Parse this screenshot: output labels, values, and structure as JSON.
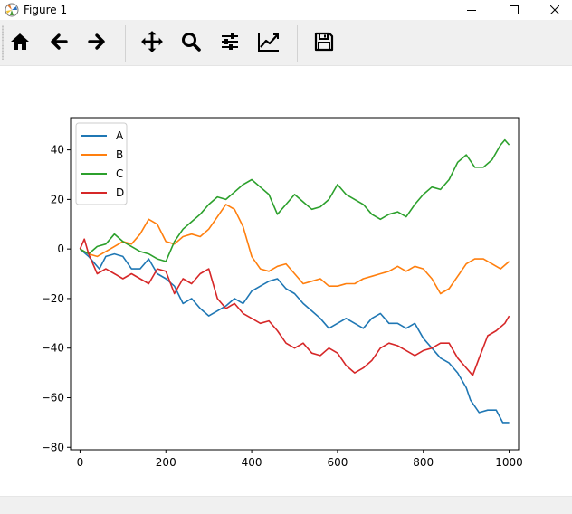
{
  "window": {
    "title": "Figure 1"
  },
  "toolbar": {
    "buttons": [
      {
        "icon": "home-icon"
      },
      {
        "icon": "back-arrow-icon"
      },
      {
        "icon": "forward-arrow-icon"
      },
      {
        "icon": "pan-move-icon"
      },
      {
        "icon": "zoom-icon"
      },
      {
        "icon": "subplots-config-icon"
      },
      {
        "icon": "edit-axes-icon"
      },
      {
        "icon": "save-icon"
      }
    ]
  },
  "chart_data": {
    "type": "line",
    "x_range": [
      0,
      1000
    ],
    "xlim": [
      -22,
      1022
    ],
    "ylim": [
      -81,
      53
    ],
    "x_ticks": [
      0,
      200,
      400,
      600,
      800,
      1000
    ],
    "y_ticks": [
      -80,
      -60,
      -40,
      -20,
      0,
      20,
      40
    ],
    "legend_position": "top-left",
    "grid": false,
    "series": [
      {
        "name": "A",
        "color": "#1f77b4",
        "points": [
          [
            0,
            0
          ],
          [
            20,
            -3
          ],
          [
            45,
            -8
          ],
          [
            60,
            -3
          ],
          [
            80,
            -2
          ],
          [
            100,
            -3
          ],
          [
            120,
            -8
          ],
          [
            140,
            -8
          ],
          [
            160,
            -4
          ],
          [
            180,
            -10
          ],
          [
            200,
            -12
          ],
          [
            220,
            -15
          ],
          [
            240,
            -22
          ],
          [
            260,
            -20
          ],
          [
            280,
            -24
          ],
          [
            300,
            -27
          ],
          [
            320,
            -25
          ],
          [
            340,
            -23
          ],
          [
            360,
            -20
          ],
          [
            380,
            -22
          ],
          [
            400,
            -17
          ],
          [
            420,
            -15
          ],
          [
            440,
            -13
          ],
          [
            460,
            -12
          ],
          [
            480,
            -16
          ],
          [
            500,
            -18
          ],
          [
            520,
            -22
          ],
          [
            540,
            -25
          ],
          [
            560,
            -28
          ],
          [
            580,
            -32
          ],
          [
            600,
            -30
          ],
          [
            620,
            -28
          ],
          [
            640,
            -30
          ],
          [
            660,
            -32
          ],
          [
            680,
            -28
          ],
          [
            700,
            -26
          ],
          [
            720,
            -30
          ],
          [
            740,
            -30
          ],
          [
            760,
            -32
          ],
          [
            780,
            -30
          ],
          [
            800,
            -36
          ],
          [
            820,
            -40
          ],
          [
            840,
            -44
          ],
          [
            860,
            -46
          ],
          [
            880,
            -50
          ],
          [
            900,
            -56
          ],
          [
            910,
            -61
          ],
          [
            930,
            -66
          ],
          [
            950,
            -65
          ],
          [
            970,
            -65
          ],
          [
            985,
            -70
          ],
          [
            1000,
            -70
          ]
        ]
      },
      {
        "name": "B",
        "color": "#ff7f0e",
        "points": [
          [
            0,
            0
          ],
          [
            20,
            -2
          ],
          [
            40,
            -3
          ],
          [
            60,
            -1
          ],
          [
            80,
            1
          ],
          [
            100,
            3
          ],
          [
            120,
            2
          ],
          [
            140,
            6
          ],
          [
            160,
            12
          ],
          [
            180,
            10
          ],
          [
            200,
            3
          ],
          [
            220,
            2
          ],
          [
            240,
            5
          ],
          [
            260,
            6
          ],
          [
            280,
            5
          ],
          [
            300,
            8
          ],
          [
            320,
            13
          ],
          [
            340,
            18
          ],
          [
            360,
            16
          ],
          [
            380,
            9
          ],
          [
            400,
            -3
          ],
          [
            420,
            -8
          ],
          [
            440,
            -9
          ],
          [
            460,
            -7
          ],
          [
            480,
            -6
          ],
          [
            500,
            -10
          ],
          [
            520,
            -14
          ],
          [
            540,
            -13
          ],
          [
            560,
            -12
          ],
          [
            580,
            -15
          ],
          [
            600,
            -15
          ],
          [
            620,
            -14
          ],
          [
            640,
            -14
          ],
          [
            660,
            -12
          ],
          [
            680,
            -11
          ],
          [
            700,
            -10
          ],
          [
            720,
            -9
          ],
          [
            740,
            -7
          ],
          [
            760,
            -9
          ],
          [
            780,
            -7
          ],
          [
            800,
            -8
          ],
          [
            820,
            -12
          ],
          [
            840,
            -18
          ],
          [
            860,
            -16
          ],
          [
            880,
            -11
          ],
          [
            900,
            -6
          ],
          [
            920,
            -4
          ],
          [
            940,
            -4
          ],
          [
            960,
            -6
          ],
          [
            980,
            -8
          ],
          [
            1000,
            -5
          ]
        ]
      },
      {
        "name": "C",
        "color": "#2ca02c",
        "points": [
          [
            0,
            0
          ],
          [
            20,
            -2
          ],
          [
            40,
            1
          ],
          [
            60,
            2
          ],
          [
            80,
            6
          ],
          [
            100,
            3
          ],
          [
            120,
            1
          ],
          [
            140,
            -1
          ],
          [
            160,
            -2
          ],
          [
            180,
            -4
          ],
          [
            200,
            -5
          ],
          [
            220,
            3
          ],
          [
            240,
            8
          ],
          [
            260,
            11
          ],
          [
            280,
            14
          ],
          [
            300,
            18
          ],
          [
            320,
            21
          ],
          [
            340,
            20
          ],
          [
            360,
            23
          ],
          [
            380,
            26
          ],
          [
            400,
            28
          ],
          [
            420,
            25
          ],
          [
            440,
            22
          ],
          [
            460,
            14
          ],
          [
            480,
            18
          ],
          [
            500,
            22
          ],
          [
            520,
            19
          ],
          [
            540,
            16
          ],
          [
            560,
            17
          ],
          [
            580,
            20
          ],
          [
            600,
            26
          ],
          [
            620,
            22
          ],
          [
            640,
            20
          ],
          [
            660,
            18
          ],
          [
            680,
            14
          ],
          [
            700,
            12
          ],
          [
            720,
            14
          ],
          [
            740,
            15
          ],
          [
            760,
            13
          ],
          [
            780,
            18
          ],
          [
            800,
            22
          ],
          [
            820,
            25
          ],
          [
            840,
            24
          ],
          [
            860,
            28
          ],
          [
            880,
            35
          ],
          [
            900,
            38
          ],
          [
            920,
            33
          ],
          [
            940,
            33
          ],
          [
            960,
            36
          ],
          [
            980,
            42
          ],
          [
            990,
            44
          ],
          [
            1000,
            42
          ]
        ]
      },
      {
        "name": "D",
        "color": "#d62728",
        "points": [
          [
            0,
            0
          ],
          [
            10,
            4
          ],
          [
            20,
            -2
          ],
          [
            40,
            -10
          ],
          [
            60,
            -8
          ],
          [
            80,
            -10
          ],
          [
            100,
            -12
          ],
          [
            120,
            -10
          ],
          [
            140,
            -12
          ],
          [
            160,
            -14
          ],
          [
            180,
            -8
          ],
          [
            200,
            -9
          ],
          [
            220,
            -18
          ],
          [
            240,
            -12
          ],
          [
            260,
            -14
          ],
          [
            280,
            -10
          ],
          [
            300,
            -8
          ],
          [
            320,
            -20
          ],
          [
            340,
            -24
          ],
          [
            360,
            -22
          ],
          [
            380,
            -26
          ],
          [
            400,
            -28
          ],
          [
            420,
            -30
          ],
          [
            440,
            -29
          ],
          [
            460,
            -33
          ],
          [
            480,
            -38
          ],
          [
            500,
            -40
          ],
          [
            520,
            -38
          ],
          [
            540,
            -42
          ],
          [
            560,
            -43
          ],
          [
            580,
            -40
          ],
          [
            600,
            -42
          ],
          [
            620,
            -47
          ],
          [
            640,
            -50
          ],
          [
            660,
            -48
          ],
          [
            680,
            -45
          ],
          [
            700,
            -40
          ],
          [
            720,
            -38
          ],
          [
            740,
            -39
          ],
          [
            760,
            -41
          ],
          [
            780,
            -43
          ],
          [
            800,
            -41
          ],
          [
            820,
            -40
          ],
          [
            840,
            -38
          ],
          [
            860,
            -38
          ],
          [
            880,
            -44
          ],
          [
            900,
            -48
          ],
          [
            915,
            -51
          ],
          [
            930,
            -44
          ],
          [
            950,
            -35
          ],
          [
            970,
            -33
          ],
          [
            990,
            -30
          ],
          [
            1000,
            -27
          ]
        ]
      }
    ]
  }
}
